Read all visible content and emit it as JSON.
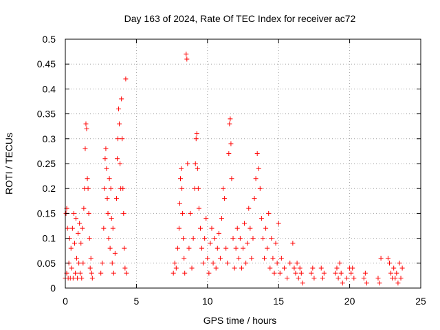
{
  "chart_data": {
    "type": "scatter",
    "title": "Day 163 of 2024, Rate Of TEC Index for receiver ac72",
    "xlabel": "GPS time / hours",
    "ylabel": "ROTI / TECUs",
    "xlim": [
      0,
      25
    ],
    "ylim": [
      0,
      0.5
    ],
    "xticks": [
      0,
      5,
      10,
      15,
      20,
      25
    ],
    "xtick_labels": [
      "0",
      "5",
      "10",
      "15",
      "20",
      "25"
    ],
    "yticks": [
      0,
      0.05,
      0.1,
      0.15,
      0.2,
      0.25,
      0.3,
      0.35,
      0.4,
      0.45,
      0.5
    ],
    "ytick_labels": [
      "0",
      "0.05",
      "0.1",
      "0.15",
      "0.2",
      "0.25",
      "0.3",
      "0.35",
      "0.4",
      "0.45",
      "0.5"
    ],
    "grid": true,
    "marker": "+",
    "color": "#ff0000",
    "series": [
      {
        "points": [
          [
            0.0,
            0.02
          ],
          [
            0.05,
            0.15
          ],
          [
            0.1,
            0.16
          ],
          [
            0.1,
            0.03
          ],
          [
            0.15,
            0.12
          ],
          [
            0.2,
            0.02
          ],
          [
            0.25,
            0.05
          ],
          [
            0.3,
            0.1
          ],
          [
            0.35,
            0.02
          ],
          [
            0.4,
            0.08
          ],
          [
            0.45,
            0.04
          ],
          [
            0.5,
            0.12
          ],
          [
            0.55,
            0.02
          ],
          [
            0.6,
            0.15
          ],
          [
            0.65,
            0.09
          ],
          [
            0.7,
            0.03
          ],
          [
            0.75,
            0.14
          ],
          [
            0.8,
            0.06
          ],
          [
            0.85,
            0.02
          ],
          [
            0.9,
            0.11
          ],
          [
            0.95,
            0.05
          ],
          [
            1.0,
            0.13
          ],
          [
            1.05,
            0.03
          ],
          [
            1.1,
            0.09
          ],
          [
            1.15,
            0.02
          ],
          [
            1.2,
            0.12
          ],
          [
            1.25,
            0.05
          ],
          [
            1.3,
            0.16
          ],
          [
            1.35,
            0.2
          ],
          [
            1.4,
            0.28
          ],
          [
            1.45,
            0.33
          ],
          [
            1.5,
            0.32
          ],
          [
            1.55,
            0.22
          ],
          [
            1.6,
            0.2
          ],
          [
            1.65,
            0.15
          ],
          [
            1.7,
            0.1
          ],
          [
            1.75,
            0.04
          ],
          [
            1.8,
            0.06
          ],
          [
            1.85,
            0.03
          ],
          [
            1.9,
            0.02
          ],
          [
            2.5,
            0.03
          ],
          [
            2.6,
            0.05
          ],
          [
            2.7,
            0.12
          ],
          [
            2.75,
            0.2
          ],
          [
            2.8,
            0.26
          ],
          [
            2.85,
            0.28
          ],
          [
            2.9,
            0.24
          ],
          [
            2.95,
            0.18
          ],
          [
            3.0,
            0.15
          ],
          [
            3.05,
            0.1
          ],
          [
            3.1,
            0.22
          ],
          [
            3.15,
            0.08
          ],
          [
            3.2,
            0.2
          ],
          [
            3.25,
            0.14
          ],
          [
            3.3,
            0.05
          ],
          [
            3.35,
            0.12
          ],
          [
            3.4,
            0.03
          ],
          [
            3.5,
            0.07
          ],
          [
            3.6,
            0.18
          ],
          [
            3.65,
            0.26
          ],
          [
            3.7,
            0.3
          ],
          [
            3.75,
            0.36
          ],
          [
            3.8,
            0.33
          ],
          [
            3.85,
            0.25
          ],
          [
            3.9,
            0.2
          ],
          [
            3.95,
            0.38
          ],
          [
            4.0,
            0.3
          ],
          [
            4.05,
            0.2
          ],
          [
            4.1,
            0.15
          ],
          [
            4.15,
            0.08
          ],
          [
            4.2,
            0.04
          ],
          [
            4.25,
            0.42
          ],
          [
            4.3,
            0.03
          ],
          [
            7.6,
            0.03
          ],
          [
            7.7,
            0.05
          ],
          [
            7.8,
            0.04
          ],
          [
            7.9,
            0.08
          ],
          [
            8.0,
            0.12
          ],
          [
            8.05,
            0.17
          ],
          [
            8.1,
            0.22
          ],
          [
            8.15,
            0.24
          ],
          [
            8.2,
            0.2
          ],
          [
            8.25,
            0.15
          ],
          [
            8.3,
            0.1
          ],
          [
            8.35,
            0.06
          ],
          [
            8.4,
            0.03
          ],
          [
            8.5,
            0.47
          ],
          [
            8.55,
            0.46
          ],
          [
            8.6,
            0.25
          ],
          [
            8.7,
            0.08
          ],
          [
            8.8,
            0.15
          ],
          [
            8.9,
            0.04
          ],
          [
            9.0,
            0.1
          ],
          [
            9.1,
            0.2
          ],
          [
            9.15,
            0.25
          ],
          [
            9.2,
            0.3
          ],
          [
            9.25,
            0.31
          ],
          [
            9.3,
            0.24
          ],
          [
            9.35,
            0.2
          ],
          [
            9.4,
            0.16
          ],
          [
            9.5,
            0.12
          ],
          [
            9.6,
            0.08
          ],
          [
            9.7,
            0.05
          ],
          [
            9.8,
            0.1
          ],
          [
            9.9,
            0.14
          ],
          [
            10.0,
            0.06
          ],
          [
            10.1,
            0.03
          ],
          [
            10.2,
            0.09
          ],
          [
            10.3,
            0.12
          ],
          [
            10.4,
            0.05
          ],
          [
            10.5,
            0.1
          ],
          [
            10.6,
            0.04
          ],
          [
            10.7,
            0.08
          ],
          [
            10.8,
            0.11
          ],
          [
            10.9,
            0.06
          ],
          [
            11.0,
            0.14
          ],
          [
            11.1,
            0.2
          ],
          [
            11.2,
            0.18
          ],
          [
            11.3,
            0.08
          ],
          [
            11.4,
            0.05
          ],
          [
            11.5,
            0.27
          ],
          [
            11.55,
            0.33
          ],
          [
            11.6,
            0.34
          ],
          [
            11.65,
            0.29
          ],
          [
            11.7,
            0.22
          ],
          [
            11.8,
            0.1
          ],
          [
            11.9,
            0.04
          ],
          [
            12.0,
            0.08
          ],
          [
            12.1,
            0.12
          ],
          [
            12.2,
            0.06
          ],
          [
            12.3,
            0.1
          ],
          [
            12.4,
            0.04
          ],
          [
            12.5,
            0.08
          ],
          [
            12.6,
            0.13
          ],
          [
            12.7,
            0.05
          ],
          [
            12.8,
            0.09
          ],
          [
            12.9,
            0.16
          ],
          [
            13.0,
            0.12
          ],
          [
            13.1,
            0.06
          ],
          [
            13.2,
            0.1
          ],
          [
            13.3,
            0.18
          ],
          [
            13.4,
            0.22
          ],
          [
            13.5,
            0.27
          ],
          [
            13.6,
            0.24
          ],
          [
            13.7,
            0.2
          ],
          [
            13.8,
            0.14
          ],
          [
            13.9,
            0.1
          ],
          [
            14.0,
            0.06
          ],
          [
            14.1,
            0.12
          ],
          [
            14.2,
            0.08
          ],
          [
            14.3,
            0.15
          ],
          [
            14.4,
            0.04
          ],
          [
            14.5,
            0.1
          ],
          [
            14.6,
            0.06
          ],
          [
            14.7,
            0.03
          ],
          [
            14.8,
            0.09
          ],
          [
            14.9,
            0.05
          ],
          [
            15.0,
            0.13
          ],
          [
            15.1,
            0.03
          ],
          [
            15.2,
            0.06
          ],
          [
            15.4,
            0.04
          ],
          [
            15.6,
            0.02
          ],
          [
            15.8,
            0.05
          ],
          [
            16.0,
            0.09
          ],
          [
            16.1,
            0.04
          ],
          [
            16.2,
            0.03
          ],
          [
            16.3,
            0.05
          ],
          [
            16.4,
            0.02
          ],
          [
            16.5,
            0.04
          ],
          [
            16.6,
            0.03
          ],
          [
            16.7,
            0.01
          ],
          [
            17.3,
            0.03
          ],
          [
            17.4,
            0.04
          ],
          [
            17.5,
            0.02
          ],
          [
            18.0,
            0.04
          ],
          [
            18.1,
            0.02
          ],
          [
            18.2,
            0.03
          ],
          [
            19.0,
            0.03
          ],
          [
            19.1,
            0.04
          ],
          [
            19.2,
            0.02
          ],
          [
            19.3,
            0.05
          ],
          [
            19.4,
            0.03
          ],
          [
            19.5,
            0.01
          ],
          [
            19.8,
            0.02
          ],
          [
            20.0,
            0.04
          ],
          [
            20.1,
            0.03
          ],
          [
            20.2,
            0.04
          ],
          [
            20.3,
            0.02
          ],
          [
            21.0,
            0.02
          ],
          [
            21.1,
            0.03
          ],
          [
            21.2,
            0.01
          ],
          [
            22.0,
            0.02
          ],
          [
            22.1,
            0.01
          ],
          [
            22.2,
            0.06
          ],
          [
            22.7,
            0.06
          ],
          [
            22.8,
            0.05
          ],
          [
            22.9,
            0.03
          ],
          [
            23.0,
            0.02
          ],
          [
            23.1,
            0.04
          ],
          [
            23.2,
            0.02
          ],
          [
            23.3,
            0.03
          ],
          [
            23.4,
            0.01
          ],
          [
            23.5,
            0.05
          ],
          [
            23.6,
            0.02
          ],
          [
            23.7,
            0.04
          ]
        ]
      }
    ]
  }
}
